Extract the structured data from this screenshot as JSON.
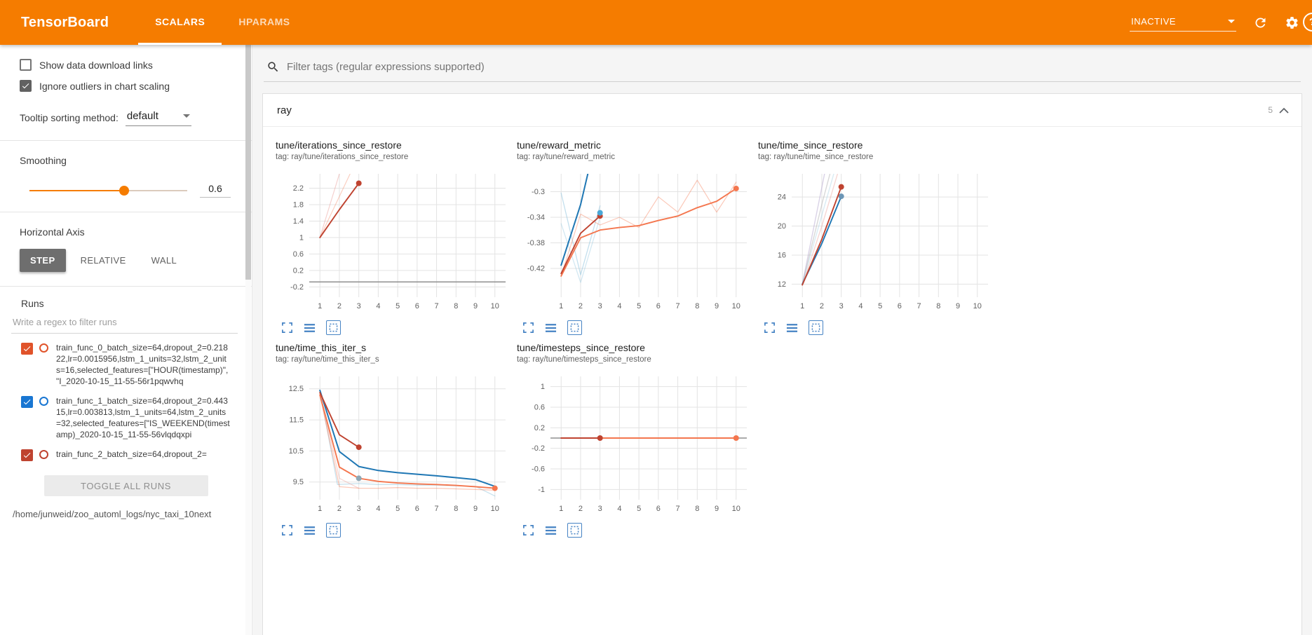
{
  "header": {
    "title": "TensorBoard",
    "tabs": [
      {
        "label": "SCALARS",
        "active": true
      },
      {
        "label": "HPARAMS",
        "active": false
      }
    ],
    "status": "INACTIVE",
    "help_glyph": "?"
  },
  "sidebar": {
    "checkboxes": [
      {
        "label": "Show data download links",
        "checked": false
      },
      {
        "label": "Ignore outliers in chart scaling",
        "checked": true
      }
    ],
    "tooltip_sort": {
      "label": "Tooltip sorting method:",
      "value": "default"
    },
    "smoothing": {
      "label": "Smoothing",
      "value": "0.6",
      "fraction": 0.6
    },
    "horizontal_axis": {
      "label": "Horizontal Axis",
      "options": [
        "STEP",
        "RELATIVE",
        "WALL"
      ],
      "selected": "STEP"
    },
    "runs": {
      "label": "Runs",
      "filter_placeholder": "Write a regex to filter runs",
      "items": [
        {
          "name": "train_func_0_batch_size=64,dropout_2=0.21822,lr=0.0015956,lstm_1_units=32,lstm_2_units=16,selected_features=[\"HOUR(timestamp)\", \"I_2020-10-15_11-55-56r1pqwvhq",
          "checked": true,
          "color": "#e0532a"
        },
        {
          "name": "train_func_1_batch_size=64,dropout_2=0.44315,lr=0.003813,lstm_1_units=64,lstm_2_units=32,selected_features=[\"IS_WEEKEND(timestamp)_2020-10-15_11-55-56vlqdqxpi",
          "checked": true,
          "color": "#1976d2"
        },
        {
          "name": "train_func_2_batch_size=64,dropout_2=",
          "checked": true,
          "color": "#bf4330"
        }
      ],
      "toggle_all_label": "TOGGLE ALL RUNS",
      "log_path": "/home/junweid/zoo_automl_logs/nyc_taxi_10next"
    }
  },
  "main": {
    "filter_placeholder": "Filter tags (regular expressions supported)",
    "category": {
      "name": "ray",
      "count": "5"
    }
  },
  "chart_data": [
    {
      "type": "line",
      "title": "tune/iterations_since_restore",
      "tag": "tag: ray/tune/iterations_since_restore",
      "xlim": [
        0.45,
        10.55
      ],
      "ylim": [
        -0.45,
        2.55
      ],
      "xticks": [
        1,
        2,
        3,
        4,
        5,
        6,
        7,
        8,
        9,
        10
      ],
      "yticks": [
        -0.2,
        0.2,
        0.6,
        1,
        1.4,
        1.8,
        2.2
      ],
      "series": [
        {
          "name": "baseline-run",
          "color": "#8f8f8f",
          "width": 1.5,
          "opacity": 1,
          "points": [
            [
              0.45,
              -0.08
            ],
            [
              10.55,
              -0.08
            ]
          ]
        },
        {
          "name": "run0-raw",
          "color": "#f4764e",
          "width": 1.2,
          "opacity": 0.35,
          "points": [
            [
              1,
              1
            ],
            [
              2,
              2
            ],
            [
              3,
              3
            ]
          ]
        },
        {
          "name": "run2-raw",
          "color": "#e89a94",
          "width": 1.2,
          "opacity": 0.45,
          "points": [
            [
              1,
              1
            ],
            [
              2,
              2.55
            ],
            [
              2.75,
              3.4
            ]
          ]
        },
        {
          "name": "run2-smoothed",
          "color": "#bf4330",
          "width": 1.9,
          "opacity": 1,
          "end_dot": true,
          "points": [
            [
              1,
              1
            ],
            [
              2,
              1.68
            ],
            [
              3,
              2.32
            ]
          ]
        }
      ]
    },
    {
      "type": "line",
      "title": "tune/reward_metric",
      "tag": "tag: ray/tune/reward_metric",
      "xlim": [
        0.45,
        10.55
      ],
      "ylim": [
        -0.465,
        -0.272
      ],
      "xticks": [
        1,
        2,
        3,
        4,
        5,
        6,
        7,
        8,
        9,
        10
      ],
      "yticks": [
        -0.42,
        -0.38,
        -0.34,
        -0.3
      ],
      "series": [
        {
          "name": "run3-raw",
          "color": "#92c5de",
          "width": 1.3,
          "opacity": 0.55,
          "points": [
            [
              1,
              -0.302
            ],
            [
              2,
              -0.43
            ],
            [
              3,
              -0.322
            ]
          ]
        },
        {
          "name": "run4-raw",
          "color": "#92c5de",
          "width": 1.3,
          "opacity": 0.4,
          "points": [
            [
              1,
              -0.35
            ],
            [
              2,
              -0.442
            ],
            [
              3,
              -0.34
            ]
          ]
        },
        {
          "name": "run1-smoothed",
          "color": "#1f77b4",
          "width": 2,
          "opacity": 1,
          "points": [
            [
              1,
              -0.415
            ],
            [
              2,
              -0.32
            ],
            [
              2.45,
              -0.262
            ]
          ]
        },
        {
          "name": "run0-raw",
          "color": "#f4764e",
          "width": 1.2,
          "opacity": 0.4,
          "points": [
            [
              1,
              -0.432
            ],
            [
              2,
              -0.335
            ],
            [
              3,
              -0.352
            ],
            [
              4,
              -0.34
            ],
            [
              5,
              -0.356
            ],
            [
              6,
              -0.308
            ],
            [
              7,
              -0.332
            ],
            [
              8,
              -0.282
            ],
            [
              9,
              -0.332
            ],
            [
              10,
              -0.285
            ]
          ]
        },
        {
          "name": "run0-smoothed",
          "color": "#f4764e",
          "width": 1.9,
          "opacity": 1,
          "end_dot": true,
          "points": [
            [
              1,
              -0.432
            ],
            [
              2,
              -0.372
            ],
            [
              3,
              -0.36
            ],
            [
              4,
              -0.356
            ],
            [
              5,
              -0.353
            ],
            [
              6,
              -0.345
            ],
            [
              7,
              -0.338
            ],
            [
              8,
              -0.325
            ],
            [
              9,
              -0.315
            ],
            [
              10,
              -0.295
            ]
          ]
        },
        {
          "name": "run2-smoothed",
          "color": "#bf4330",
          "width": 1.9,
          "opacity": 1,
          "end_dot": true,
          "points": [
            [
              1,
              -0.428
            ],
            [
              2,
              -0.365
            ],
            [
              3,
              -0.338
            ]
          ]
        },
        {
          "name": "run3-smoothed-end",
          "color": "#4aa8d8",
          "width": 1.6,
          "opacity": 1,
          "end_dot": true,
          "points": [
            [
              3,
              -0.333
            ]
          ]
        }
      ]
    },
    {
      "type": "line",
      "title": "tune/time_since_restore",
      "tag": "tag: ray/tune/time_since_restore",
      "xlim": [
        0.45,
        10.55
      ],
      "ylim": [
        10.2,
        27.2
      ],
      "xticks": [
        1,
        2,
        3,
        4,
        5,
        6,
        7,
        8,
        9,
        10
      ],
      "yticks": [
        12,
        16,
        20,
        24
      ],
      "series": [
        {
          "name": "run-raw-a",
          "color": "#b6a8cf",
          "width": 1.4,
          "opacity": 0.5,
          "points": [
            [
              1,
              12
            ],
            [
              1.9,
              24
            ],
            [
              2.2,
              28
            ]
          ]
        },
        {
          "name": "run-raw-b",
          "color": "#9e9e9e",
          "width": 1.4,
          "opacity": 0.4,
          "points": [
            [
              1,
              12
            ],
            [
              2,
              23
            ],
            [
              2.5,
              28
            ]
          ]
        },
        {
          "name": "run-raw-c",
          "color": "#e89a94",
          "width": 1.4,
          "opacity": 0.4,
          "points": [
            [
              1,
              11.8
            ],
            [
              2,
              20
            ],
            [
              2.9,
              28
            ]
          ]
        },
        {
          "name": "run-raw-d",
          "color": "#92c5de",
          "width": 1.4,
          "opacity": 0.35,
          "points": [
            [
              1,
              12
            ],
            [
              2,
              21.5
            ],
            [
              2.7,
              28
            ]
          ]
        },
        {
          "name": "run1-smoothed",
          "color": "#1f77b4",
          "width": 1.9,
          "opacity": 1,
          "end_dot": true,
          "dot_color": "#6b95b5",
          "points": [
            [
              1,
              12
            ],
            [
              2,
              17.6
            ],
            [
              3,
              24.1
            ]
          ]
        },
        {
          "name": "run2-smoothed",
          "color": "#bf4330",
          "width": 1.9,
          "opacity": 1,
          "end_dot": true,
          "points": [
            [
              1,
              11.9
            ],
            [
              2,
              18.2
            ],
            [
              3,
              25.4
            ]
          ]
        }
      ]
    },
    {
      "type": "line",
      "title": "tune/time_this_iter_s",
      "tag": "tag: ray/tune/time_this_iter_s",
      "xlim": [
        0.45,
        10.55
      ],
      "ylim": [
        8.93,
        12.9
      ],
      "xticks": [
        1,
        2,
        3,
        4,
        5,
        6,
        7,
        8,
        9,
        10
      ],
      "yticks": [
        9.5,
        10.5,
        11.5,
        12.5
      ],
      "series": [
        {
          "name": "run1-raw",
          "color": "#92c5de",
          "width": 1.3,
          "opacity": 0.5,
          "points": [
            [
              1,
              12.45
            ],
            [
              1.9,
              9.42
            ],
            [
              3,
              9.45
            ],
            [
              4,
              9.42
            ],
            [
              5,
              9.42
            ],
            [
              6,
              9.4
            ],
            [
              7,
              9.4
            ],
            [
              8,
              9.38
            ],
            [
              9,
              9.36
            ],
            [
              10,
              9.05
            ]
          ]
        },
        {
          "name": "run2-raw",
          "color": "#e89a94",
          "width": 1.3,
          "opacity": 0.4,
          "points": [
            [
              1,
              12.35
            ],
            [
              2,
              9.62
            ],
            [
              3,
              9.3
            ]
          ]
        },
        {
          "name": "run0-raw",
          "color": "#f4764e",
          "width": 1.3,
          "opacity": 0.4,
          "points": [
            [
              1,
              12.3
            ],
            [
              2,
              9.35
            ],
            [
              3,
              9.3
            ],
            [
              4,
              9.3
            ],
            [
              5,
              9.32
            ],
            [
              6,
              9.3
            ],
            [
              7,
              9.3
            ],
            [
              8,
              9.28
            ],
            [
              9,
              9.26
            ],
            [
              10,
              9.24
            ]
          ]
        },
        {
          "name": "run1-smoothed",
          "color": "#1f77b4",
          "width": 2,
          "opacity": 1,
          "points": [
            [
              1,
              12.45
            ],
            [
              2,
              10.48
            ],
            [
              3,
              10
            ],
            [
              4,
              9.87
            ],
            [
              5,
              9.8
            ],
            [
              6,
              9.75
            ],
            [
              7,
              9.7
            ],
            [
              8,
              9.64
            ],
            [
              9,
              9.58
            ],
            [
              10,
              9.36
            ]
          ]
        },
        {
          "name": "run0-smoothed",
          "color": "#f4764e",
          "width": 1.9,
          "opacity": 1,
          "end_dot": true,
          "points": [
            [
              1,
              12.3
            ],
            [
              2,
              9.98
            ],
            [
              3,
              9.62
            ],
            [
              4,
              9.52
            ],
            [
              5,
              9.47
            ],
            [
              6,
              9.44
            ],
            [
              7,
              9.42
            ],
            [
              8,
              9.39
            ],
            [
              9,
              9.35
            ],
            [
              10,
              9.3
            ]
          ]
        },
        {
          "name": "run2-smoothed",
          "color": "#bf4330",
          "width": 1.9,
          "opacity": 1,
          "end_dot": true,
          "points": [
            [
              1,
              12.38
            ],
            [
              2,
              11.02
            ],
            [
              3,
              10.62
            ]
          ]
        },
        {
          "name": "run3-smoothed-end",
          "color": "#8fa8b5",
          "width": 1.6,
          "opacity": 1,
          "end_dot": true,
          "points": [
            [
              3,
              9.62
            ]
          ]
        }
      ]
    },
    {
      "type": "line",
      "title": "tune/timesteps_since_restore",
      "tag": "tag: ray/tune/timesteps_since_restore",
      "xlim": [
        0.45,
        10.55
      ],
      "ylim": [
        -1.2,
        1.2
      ],
      "xticks": [
        1,
        2,
        3,
        4,
        5,
        6,
        7,
        8,
        9,
        10
      ],
      "yticks": [
        -1,
        -0.6,
        -0.2,
        0.2,
        0.6,
        1
      ],
      "series": [
        {
          "name": "baseline-run",
          "color": "#8f8f8f",
          "width": 1.4,
          "opacity": 1,
          "points": [
            [
              0.45,
              0
            ],
            [
              10.55,
              0
            ]
          ]
        },
        {
          "name": "run0-smoothed",
          "color": "#f4764e",
          "width": 1.9,
          "opacity": 1,
          "end_dot": true,
          "points": [
            [
              1,
              0
            ],
            [
              10,
              0
            ]
          ]
        },
        {
          "name": "run2-smoothed",
          "color": "#bf4330",
          "width": 1.9,
          "opacity": 1,
          "end_dot": true,
          "points": [
            [
              1,
              0
            ],
            [
              3,
              0
            ]
          ]
        }
      ]
    }
  ]
}
